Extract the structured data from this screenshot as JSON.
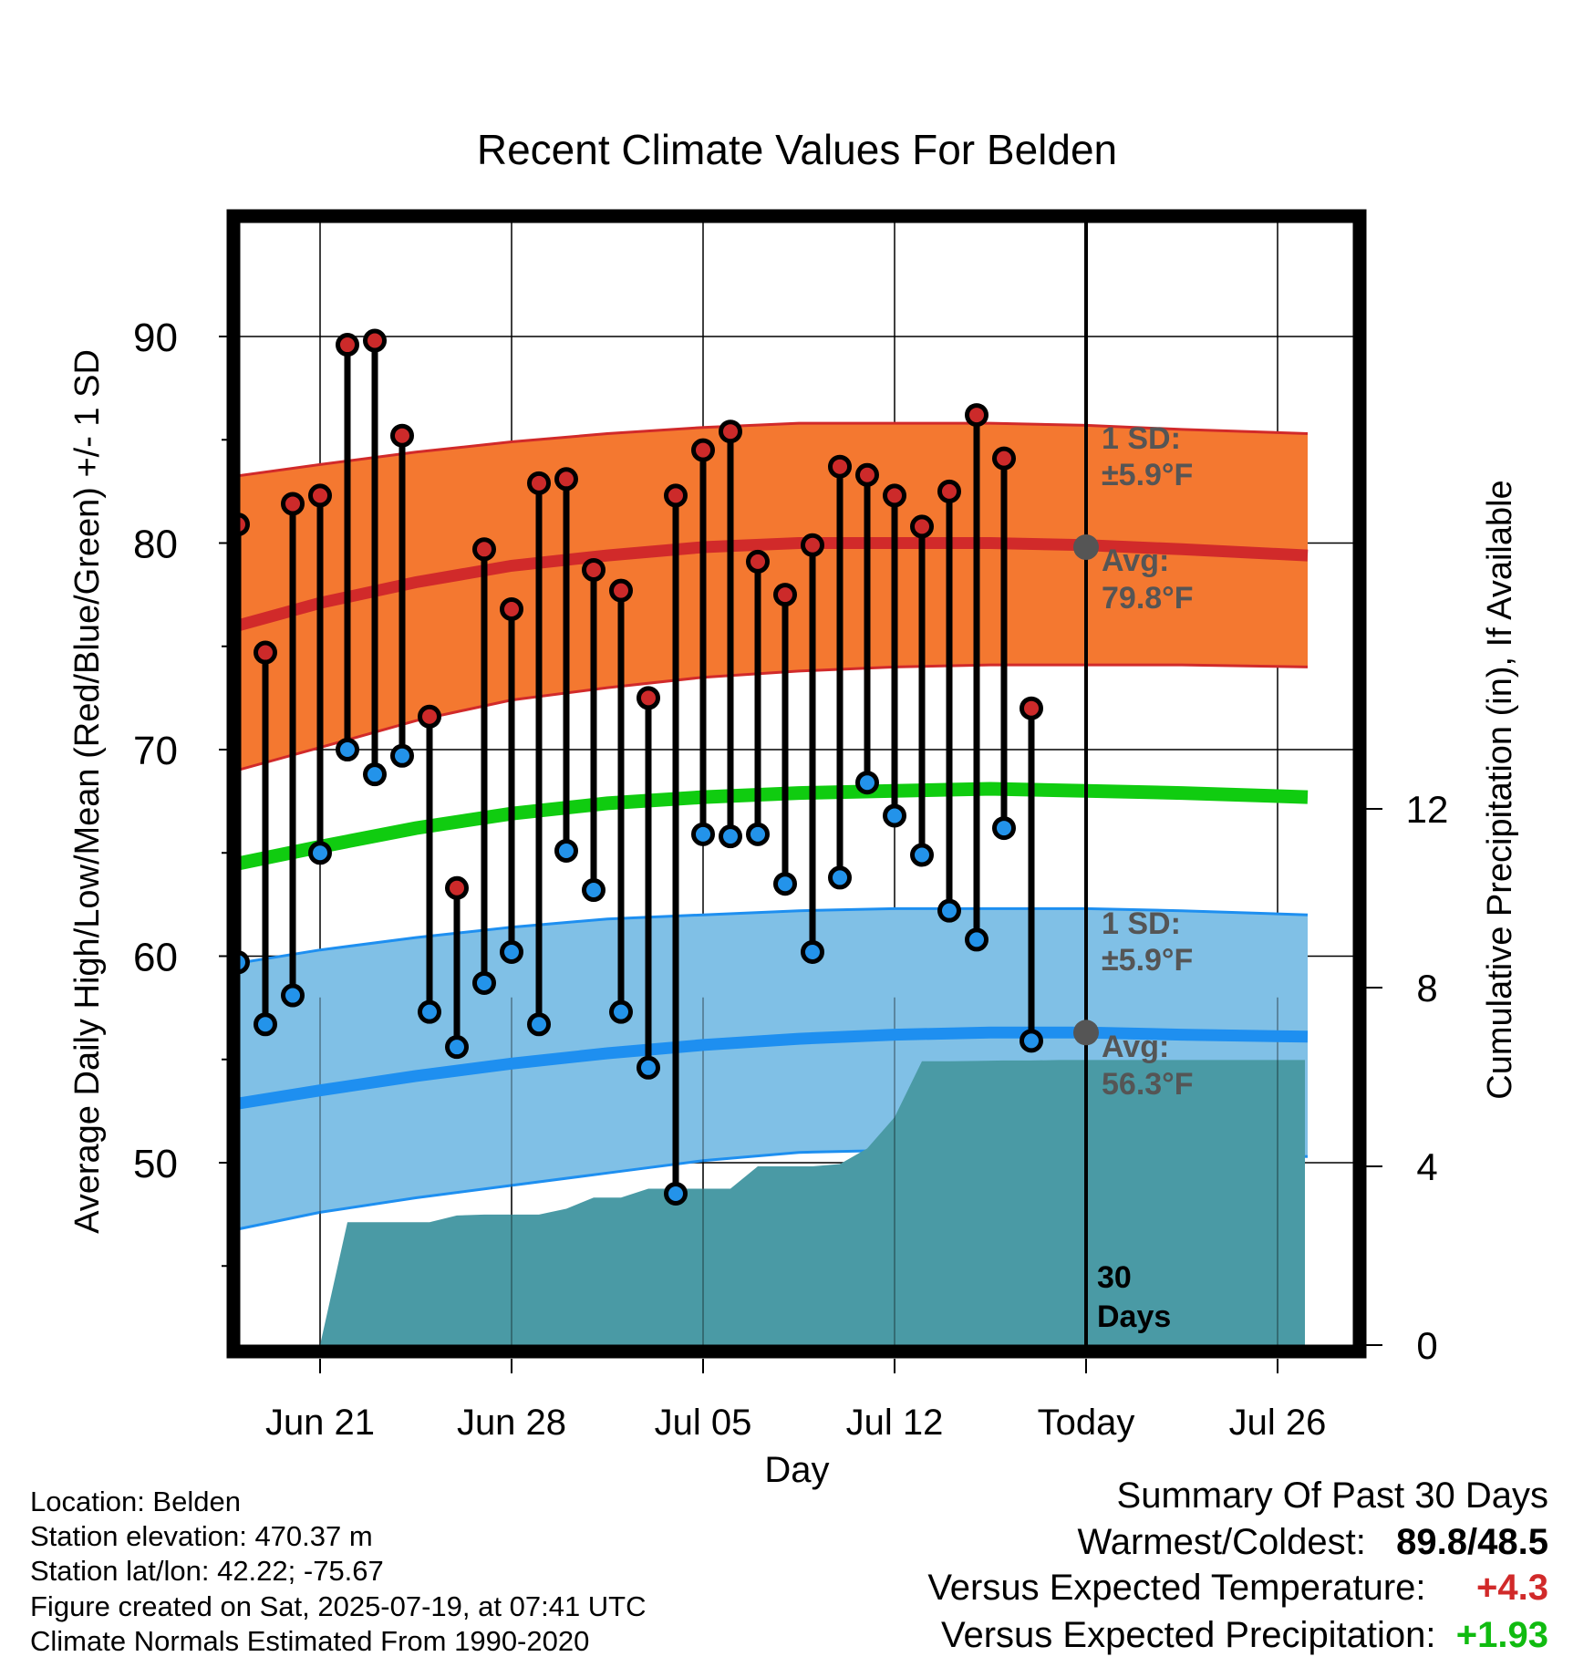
{
  "title": "Recent Climate Values For Belden",
  "chart_data": {
    "type": "line",
    "title": "Recent Climate Values For Belden",
    "xlabel": "Day",
    "ylabel": "Average Daily High/Low/Mean (Red/Blue/Green) +/- 1 SD",
    "y2label": "Cumulative Precipitation (in), If Available",
    "ylim": [
      40,
      95
    ],
    "y2lim": [
      0,
      24
    ],
    "y_ticks": [
      50,
      60,
      70,
      80,
      90
    ],
    "y2_ticks": [
      0,
      4,
      8,
      12
    ],
    "x_ticks": [
      "Jun 21",
      "Jun 28",
      "Jul 05",
      "Jul 12",
      "Today",
      "Jul 26"
    ],
    "x_tick_days": [
      21,
      28,
      35,
      42,
      49,
      56
    ],
    "grid": true,
    "today_day": 49,
    "normals_days": [
      17.7,
      21,
      24.5,
      28,
      31.5,
      35,
      38.5,
      42,
      45.5,
      49,
      52.5,
      57.1
    ],
    "normal_high": [
      75.9,
      77.1,
      78.1,
      78.9,
      79.4,
      79.8,
      80.0,
      80.0,
      80.0,
      79.9,
      79.7,
      79.4
    ],
    "normal_high_upper": [
      83.2,
      83.8,
      84.4,
      84.9,
      85.3,
      85.6,
      85.8,
      85.8,
      85.8,
      85.7,
      85.5,
      85.3
    ],
    "normal_high_lower": [
      68.9,
      70.1,
      71.4,
      72.4,
      73.0,
      73.5,
      73.8,
      74.0,
      74.1,
      74.1,
      74.1,
      74.0
    ],
    "normal_mean": [
      64.4,
      65.3,
      66.2,
      66.9,
      67.4,
      67.7,
      67.9,
      68.0,
      68.1,
      68.0,
      67.9,
      67.7
    ],
    "normal_low": [
      52.8,
      53.5,
      54.2,
      54.8,
      55.3,
      55.7,
      56.0,
      56.2,
      56.3,
      56.3,
      56.2,
      56.1
    ],
    "normal_low_upper": [
      59.6,
      60.3,
      60.9,
      61.4,
      61.8,
      62.0,
      62.2,
      62.3,
      62.3,
      62.3,
      62.2,
      62.0
    ],
    "normal_low_lower": [
      46.7,
      47.6,
      48.3,
      48.9,
      49.5,
      50.1,
      50.5,
      50.6,
      50.6,
      50.5,
      50.4,
      50.3
    ],
    "daily_days": [
      18,
      19,
      20,
      21,
      22,
      23,
      24,
      25,
      26,
      27,
      28,
      29,
      30,
      31,
      32,
      33,
      34,
      35,
      36,
      37,
      38,
      39,
      40,
      41,
      42,
      43,
      44,
      45,
      46,
      47,
      48
    ],
    "daily_high": [
      80.9,
      74.7,
      81.9,
      82.3,
      89.6,
      89.8,
      85.2,
      71.6,
      63.3,
      79.7,
      76.8,
      82.9,
      83.1,
      78.7,
      77.7,
      72.5,
      82.3,
      84.5,
      85.4,
      79.1,
      77.5,
      79.9,
      83.7,
      83.3,
      82.3,
      80.8,
      82.5,
      86.2,
      84.1,
      72.0,
      null
    ],
    "daily_low": [
      59.7,
      56.7,
      58.1,
      65.0,
      70.0,
      68.8,
      69.7,
      57.3,
      55.6,
      58.7,
      60.2,
      56.7,
      65.1,
      63.2,
      57.3,
      54.6,
      48.5,
      65.9,
      65.8,
      65.9,
      63.5,
      60.2,
      63.8,
      68.4,
      66.8,
      64.9,
      62.2,
      60.8,
      66.2,
      55.9,
      null
    ],
    "precip_days": [
      20,
      21,
      22,
      23,
      24,
      25,
      26,
      27,
      28,
      29,
      30,
      31,
      32,
      33,
      34,
      35,
      36,
      37,
      38,
      39,
      40,
      41,
      42,
      43,
      44,
      45,
      46,
      47,
      48,
      49,
      50,
      51,
      52,
      53,
      54,
      55,
      56,
      57
    ],
    "precip_cumulative": [
      0.0,
      0.0,
      2.75,
      2.75,
      2.75,
      2.75,
      2.9,
      2.92,
      2.92,
      2.92,
      3.05,
      3.3,
      3.3,
      3.5,
      3.5,
      3.5,
      3.5,
      4.0,
      4.0,
      4.0,
      4.05,
      4.4,
      5.1,
      6.35,
      6.35,
      6.36,
      6.37,
      6.37,
      6.38,
      6.38,
      6.38,
      6.38,
      6.38,
      6.38,
      6.38,
      6.38,
      6.38,
      6.38
    ],
    "colors": {
      "high_band": "#f47830",
      "high_line": "#d12a2a",
      "mean_line": "#10cc10",
      "low_band": "#80c0e6",
      "low_line": "#1e8ff0",
      "precip_area": "#4a9aa5",
      "high_dot": "#cc2a2a",
      "low_dot": "#2393ea",
      "avg_marker": "#555555"
    }
  },
  "annotations": {
    "high_sd_label_1": "1 SD:",
    "high_sd_label_2": "±5.9°F",
    "high_avg_label_1": "Avg:",
    "high_avg_label_2": "79.8°F",
    "high_avg_value": 79.8,
    "low_sd_label_1": "1 SD:",
    "low_sd_label_2": "±5.9°F",
    "low_avg_label_1": "Avg:",
    "low_avg_label_2": "56.3°F",
    "low_avg_value": 56.3,
    "days_label_1": "30",
    "days_label_2": "Days"
  },
  "info": {
    "location": "Location: Belden",
    "elevation": "Station elevation: 470.37 m",
    "latlon": "Station lat/lon: 42.22; -75.67",
    "created": "Figure created on Sat, 2025-07-19, at 07:41 UTC",
    "normals": "Climate Normals Estimated From 1990-2020"
  },
  "summary": {
    "heading": "Summary Of Past 30 Days",
    "warm_cold_label": "Warmest/Coldest:",
    "warmest": "89.8",
    "slash": "/",
    "coldest": "48.5",
    "temp_label": "Versus Expected Temperature:",
    "temp_value": "+4.3",
    "temp_color": "#d12a2a",
    "precip_label": "Versus Expected Precipitation:",
    "precip_value": "+1.93",
    "precip_color": "#10bb10"
  }
}
